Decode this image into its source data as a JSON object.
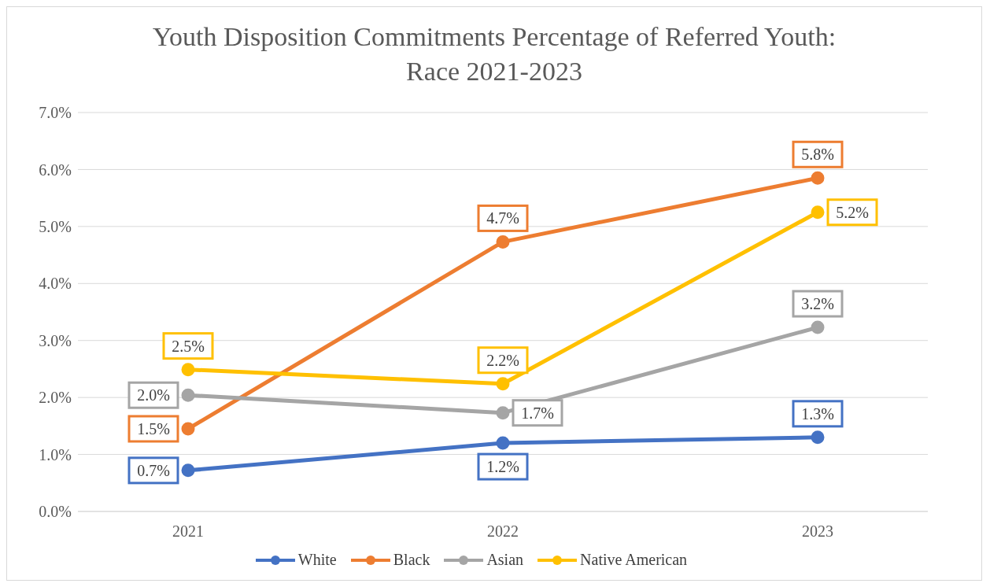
{
  "chart_data": {
    "type": "line",
    "title": "Youth Disposition Commitments Percentage of Referred Youth: Race 2021-2023",
    "categories": [
      "2021",
      "2022",
      "2023"
    ],
    "series": [
      {
        "name": "White",
        "color": "#4472c4",
        "values": [
          0.72,
          1.2,
          1.3
        ],
        "value_labels": [
          "0.7%",
          "1.2%",
          "1.3%"
        ]
      },
      {
        "name": "Black",
        "color": "#ed7d31",
        "values": [
          1.45,
          4.73,
          5.85
        ],
        "value_labels": [
          "1.5%",
          "4.7%",
          "5.8%"
        ]
      },
      {
        "name": "Asian",
        "color": "#a5a5a5",
        "values": [
          2.04,
          1.73,
          3.23
        ],
        "value_labels": [
          "2.0%",
          "1.7%",
          "3.2%"
        ]
      },
      {
        "name": "Native American",
        "color": "#ffc000",
        "values": [
          2.49,
          2.24,
          5.25
        ],
        "value_labels": [
          "2.5%",
          "2.2%",
          "5.2%"
        ]
      }
    ],
    "ylim": [
      0,
      7
    ],
    "yticks": [
      {
        "value": 0,
        "label": "0.0%"
      },
      {
        "value": 1,
        "label": "1.0%"
      },
      {
        "value": 2,
        "label": "2.0%"
      },
      {
        "value": 3,
        "label": "3.0%"
      },
      {
        "value": 4,
        "label": "4.0%"
      },
      {
        "value": 5,
        "label": "5.0%"
      },
      {
        "value": 6,
        "label": "6.0%"
      },
      {
        "value": 7,
        "label": "7.0%"
      }
    ],
    "grid": "y",
    "legend": "bottom",
    "marker": "circle",
    "line_style": "solid"
  }
}
